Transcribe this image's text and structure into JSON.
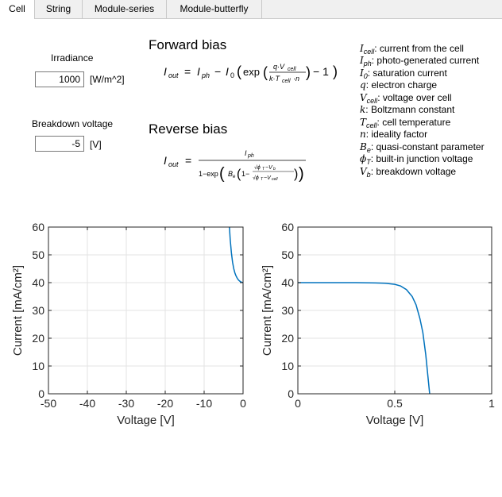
{
  "tabs": [
    {
      "label": "Cell",
      "active": true
    },
    {
      "label": "String",
      "active": false
    },
    {
      "label": "Module-series",
      "active": false
    },
    {
      "label": "Module-butterfly",
      "active": false
    }
  ],
  "inputs": {
    "irradiance": {
      "label": "Irradiance",
      "value": "1000",
      "unit": "[W/m^2]"
    },
    "breakdown": {
      "label": "Breakdown voltage",
      "value": "-5",
      "unit": "[V]"
    }
  },
  "equations": {
    "forward_title": "Forward bias",
    "reverse_title": "Reverse bias"
  },
  "legend": [
    {
      "sym": "I",
      "sub": "cell",
      "text": ": current from the cell"
    },
    {
      "sym": "I",
      "sub": "ph",
      "text": ": photo-generated current"
    },
    {
      "sym": "I",
      "sub": "0",
      "text": ": saturation current"
    },
    {
      "sym": "q",
      "sub": "",
      "text": ": electron charge"
    },
    {
      "sym": "V",
      "sub": "cell",
      "text": ": voltage over cell"
    },
    {
      "sym": "k",
      "sub": "",
      "text": ": Boltzmann constant"
    },
    {
      "sym": "T",
      "sub": "cell",
      "text": ": cell temperature"
    },
    {
      "sym": "n",
      "sub": "",
      "text": ": ideality factor"
    },
    {
      "sym": "B",
      "sub": "e",
      "text": ": quasi-constant parameter"
    },
    {
      "sym": "ϕ",
      "sub": "T",
      "text": ": built-in junction voltage"
    },
    {
      "sym": "V",
      "sub": "b",
      "text": ": breakdown voltage"
    }
  ],
  "chart_data": [
    {
      "type": "line",
      "xlabel": "Voltage [V]",
      "ylabel": "Current  [mA/cm²]",
      "xlim": [
        -50,
        0
      ],
      "ylim": [
        0,
        60
      ],
      "xticks": [
        -50,
        -40,
        -30,
        -20,
        -10,
        0
      ],
      "yticks": [
        0,
        10,
        20,
        30,
        40,
        50,
        60
      ],
      "grid": true,
      "color": "#0072BD",
      "series": [
        {
          "x": [
            -3.5,
            -3.3,
            -3.0,
            -2.7,
            -2.4,
            -2.1,
            -1.8,
            -1.5,
            -1.2,
            -0.9,
            -0.6,
            -0.3,
            0
          ],
          "y": [
            60,
            55.5,
            50.8,
            47.4,
            45.1,
            43.5,
            42.4,
            41.6,
            41.0,
            40.6,
            40.3,
            40.1,
            40.0
          ]
        }
      ]
    },
    {
      "type": "line",
      "xlabel": "Voltage [V]",
      "ylabel": "Current  [mA/cm²]",
      "xlim": [
        0,
        1
      ],
      "ylim": [
        0,
        60
      ],
      "xticks": [
        0,
        0.5,
        1
      ],
      "yticks": [
        0,
        10,
        20,
        30,
        40,
        50,
        60
      ],
      "grid": true,
      "color": "#0072BD",
      "series": [
        {
          "x": [
            0,
            0.1,
            0.2,
            0.3,
            0.4,
            0.45,
            0.5,
            0.53,
            0.56,
            0.59,
            0.61,
            0.63,
            0.645,
            0.66,
            0.67,
            0.68
          ],
          "y": [
            40,
            40,
            40,
            40,
            39.9,
            39.8,
            39.4,
            38.8,
            37.5,
            35,
            32,
            27,
            22,
            14,
            7,
            0
          ]
        }
      ]
    }
  ]
}
